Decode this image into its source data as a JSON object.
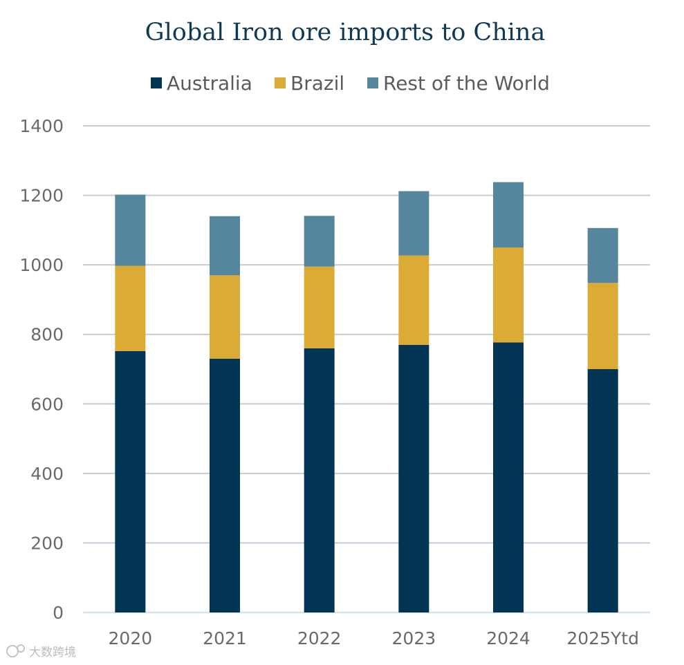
{
  "chart_data": {
    "type": "bar",
    "stacked": true,
    "title": "Global Iron ore imports to China",
    "categories": [
      "2020",
      "2021",
      "2022",
      "2023",
      "2024",
      "2025Ytd"
    ],
    "series": [
      {
        "name": "Australia",
        "color": "#023554",
        "values": [
          752,
          730,
          760,
          770,
          777,
          700
        ]
      },
      {
        "name": "Brazil",
        "color": "#dbab36",
        "values": [
          245,
          240,
          235,
          257,
          273,
          248
        ]
      },
      {
        "name": "Rest of the World",
        "color": "#56869e",
        "values": [
          205,
          170,
          146,
          185,
          188,
          158
        ]
      }
    ],
    "yticks": [
      "0",
      "200",
      "400",
      "600",
      "800",
      "1000",
      "1200",
      "1400"
    ],
    "ylim": [
      0,
      1400
    ],
    "grid": true,
    "legend_position": "top"
  },
  "watermark": "大数跨境"
}
